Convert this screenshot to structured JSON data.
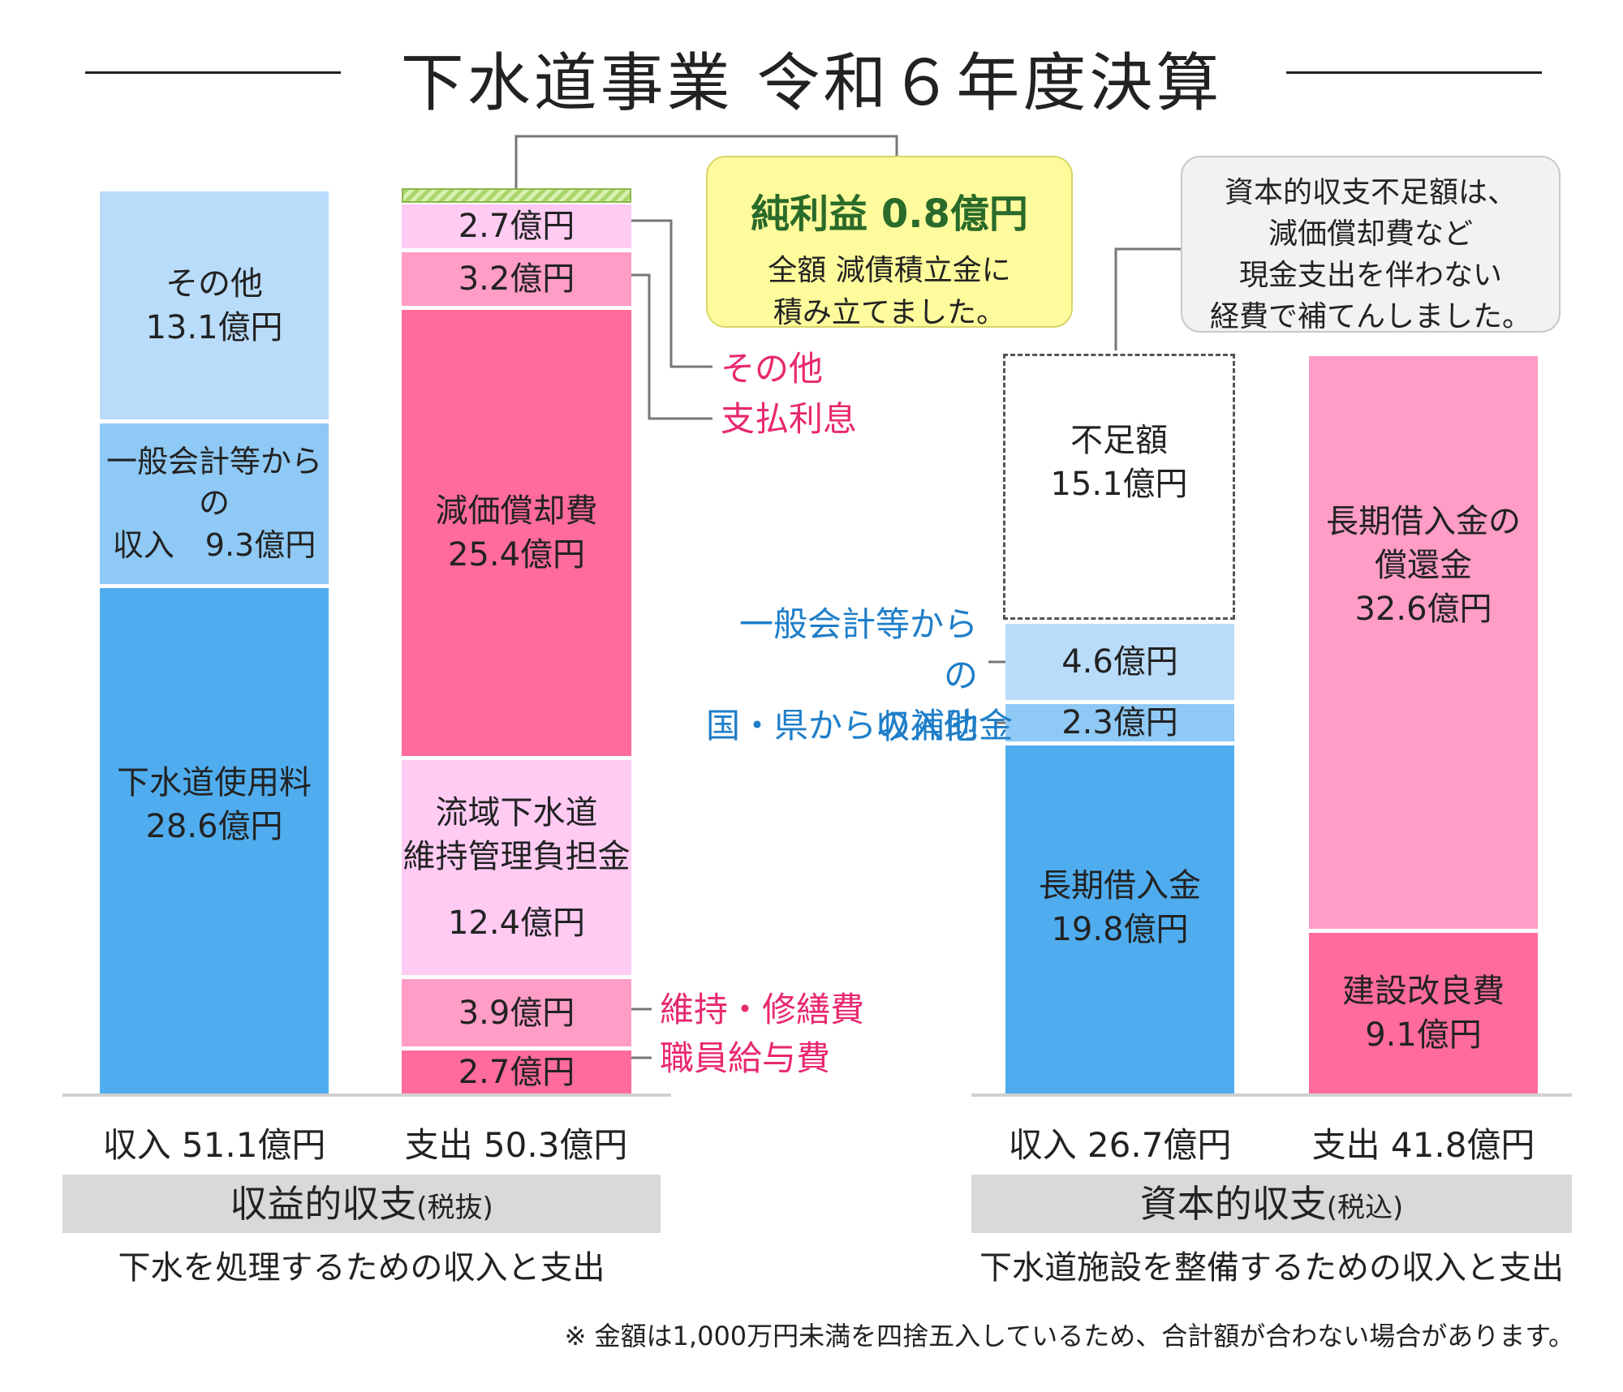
{
  "title": "下水道事業 令和６年度決算",
  "chart_data": [
    {
      "type": "bar",
      "stacked": true,
      "section": "収益的収支",
      "section_note": "(税抜)",
      "description": "下水を処理するための収入と支出",
      "bars": [
        {
          "label": "収入 51.1億円",
          "total": 51.1,
          "segments": [
            {
              "name": "下水道使用料",
              "value": 28.6,
              "text": "28.6億円",
              "color": "#4fadef"
            },
            {
              "name": "一般会計等からの\n収入",
              "value": 9.3,
              "text": "9.3億円",
              "color": "#8fc9f5"
            },
            {
              "name": "その他",
              "value": 13.1,
              "text": "13.1億円",
              "color": "#b9dcfa"
            }
          ]
        },
        {
          "label": "支出 50.3億円",
          "total": 50.3,
          "segments": [
            {
              "name": "職員給与費",
              "value": 2.7,
              "text": "2.7億円",
              "color": "#ff6b9b"
            },
            {
              "name": "維持・修繕費",
              "value": 3.9,
              "text": "3.9億円",
              "color": "#ff9dc6"
            },
            {
              "name": "流域下水道\n維持管理負担金",
              "value": 12.4,
              "text": "12.4億円",
              "color": "#ffcbf3"
            },
            {
              "name": "減価償却費",
              "value": 25.4,
              "text": "25.4億円",
              "color": "#ff6b9b"
            },
            {
              "name": "支払利息",
              "value": 3.2,
              "text": "3.2億円",
              "color": "#ff9dc6"
            },
            {
              "name": "その他",
              "value": 2.7,
              "text": "2.7億円",
              "color": "#ffcbf3"
            }
          ],
          "profit": {
            "value": 0.8,
            "color": "#a8d66a"
          }
        }
      ]
    },
    {
      "type": "bar",
      "stacked": true,
      "section": "資本的収支",
      "section_note": "(税込)",
      "description": "下水道施設を整備するための収入と支出",
      "bars": [
        {
          "label": "収入 26.7億円",
          "total": 26.7,
          "segments": [
            {
              "name": "長期借入金",
              "value": 19.8,
              "text": "19.8億円",
              "color": "#4fadef"
            },
            {
              "name": "国・県からの補助金",
              "value": 2.3,
              "text": "2.3億円",
              "color": "#8fc9f5"
            },
            {
              "name": "一般会計等からの\n収入他",
              "value": 4.6,
              "text": "4.6億円",
              "color": "#b9dcfa"
            }
          ],
          "shortfall": {
            "name": "不足額",
            "value": 15.1,
            "text": "15.1億円"
          }
        },
        {
          "label": "支出 41.8億円",
          "total": 41.8,
          "segments": [
            {
              "name": "建設改良費",
              "value": 9.1,
              "text": "9.1億円",
              "color": "#ff6b9b"
            },
            {
              "name": "長期借入金の\n償還金",
              "value": 32.6,
              "text": "32.6億円",
              "color": "#ff9dc6"
            }
          ]
        }
      ]
    }
  ],
  "labels": {
    "rev_other": "その他\n13.1億円",
    "rev_general": "一般会計等からの\n収入　9.3億円",
    "rev_fee": "下水道使用料\n28.6億円",
    "exp_other_val": "2.7億円",
    "exp_interest_val": "3.2億円",
    "exp_depr": "減価償却費\n25.4億円",
    "exp_basin": "流域下水道\n維持管理負担金",
    "exp_basin_val": "12.4億円",
    "exp_maint_val": "3.9億円",
    "exp_salary_val": "2.7億円",
    "cap_shortfall": "不足額\n15.1億円",
    "cap_general_val": "4.6億円",
    "cap_subsidy_val": "2.3億円",
    "cap_loan": "長期借入金\n19.8億円",
    "cap_repay": "長期借入金の\n償還金\n32.6億円",
    "cap_construct": "建設改良費\n9.1億円"
  },
  "callouts": {
    "other": "その他",
    "interest": "支払利息",
    "general": "一般会計等からの\n収入他",
    "subsidy": "国・県からの補助金",
    "maint": "維持・修繕費",
    "salary": "職員給与費"
  },
  "profit_box": {
    "heading": "純利益 0.8億円",
    "body": "全額 減債積立金に\n積み立てました。",
    "bg": "#fdfb9b"
  },
  "shortfall_box": {
    "body": "資本的収支不足額は、\n減価償却費など\n現金支出を伴わない\n経費で補てんしました。"
  },
  "axis": {
    "rev_income": "収入 51.1億円",
    "rev_expense": "支出 50.3億円",
    "cap_income": "収入 26.7億円",
    "cap_expense": "支出 41.8億円"
  },
  "sections": {
    "rev_title": "収益的収支",
    "rev_note": "(税抜)",
    "rev_desc": "下水を処理するための収入と支出",
    "cap_title": "資本的収支",
    "cap_note": "(税込)",
    "cap_desc": "下水道施設を整備するための収入と支出"
  },
  "footnote": "※ 金額は1,000万円未満を四捨五入しているため、合計額が合わない場合があります。"
}
